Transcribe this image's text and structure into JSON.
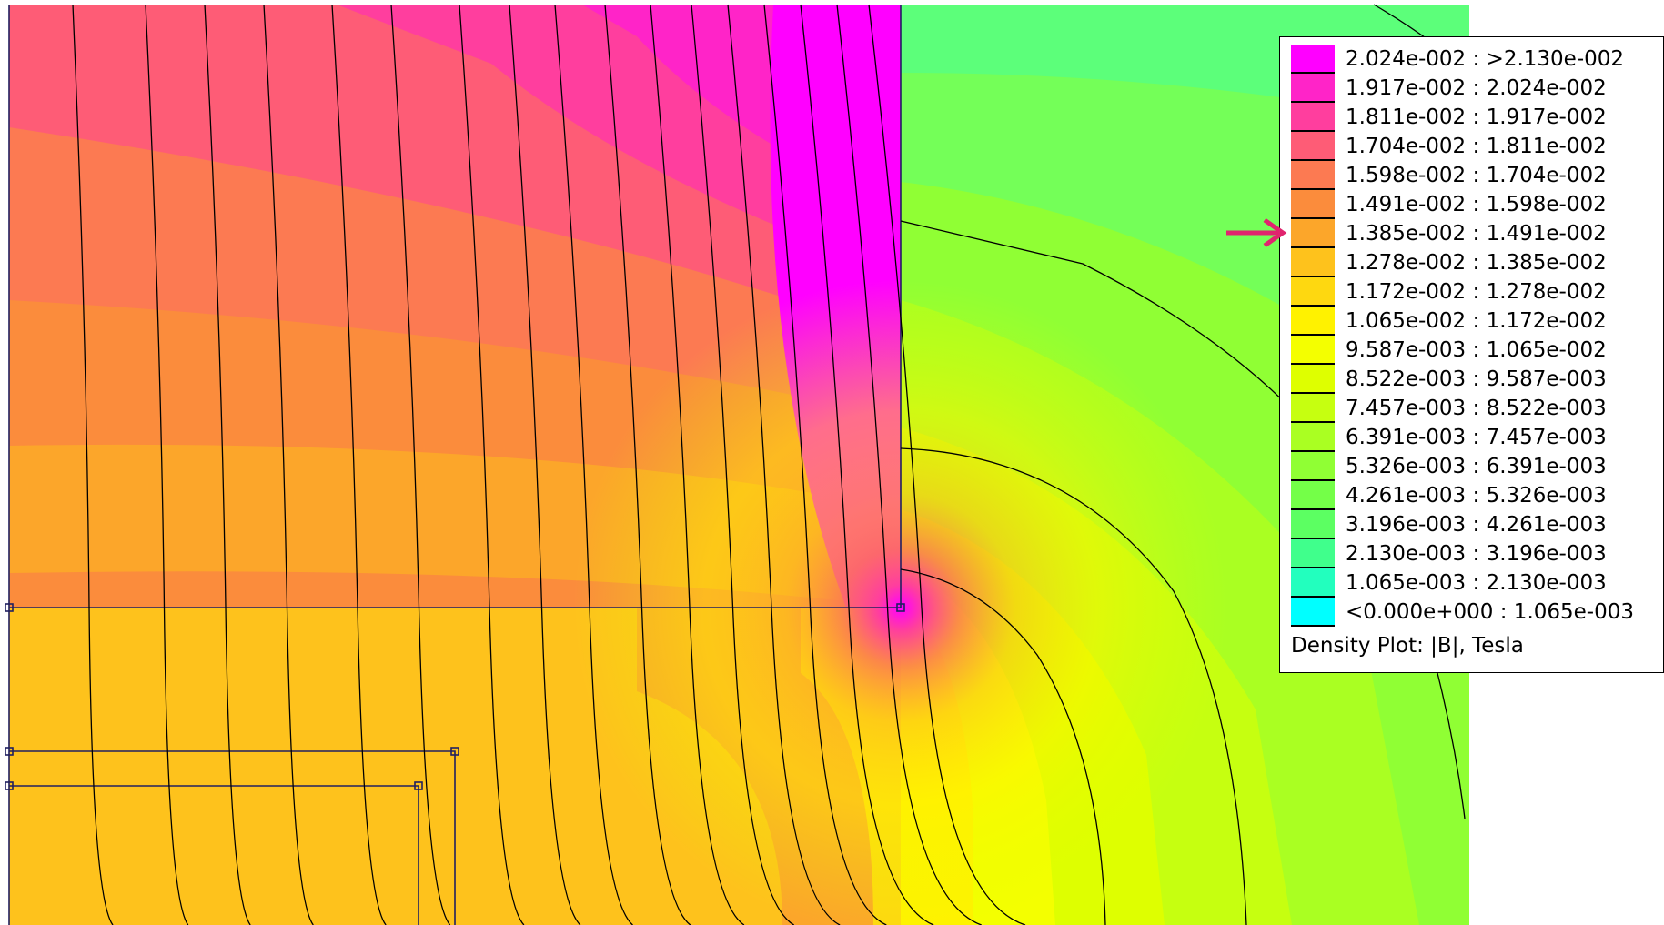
{
  "chart_data": {
    "type": "heatmap",
    "title": "",
    "legend": {
      "placement": "top-right",
      "caption": "Density Plot: |B|, Tesla",
      "ranges": [
        {
          "label": "2.024e-002 : >2.130e-002",
          "color": "#ff00ff"
        },
        {
          "label": "1.917e-002 : 2.024e-002",
          "color": "#ff24c8"
        },
        {
          "label": "1.811e-002 : 1.917e-002",
          "color": "#ff3e9e"
        },
        {
          "label": "1.704e-002 : 1.811e-002",
          "color": "#fe5c76"
        },
        {
          "label": "1.598e-002 : 1.704e-002",
          "color": "#fc7a52"
        },
        {
          "label": "1.491e-002 : 1.598e-002",
          "color": "#fb8c3c"
        },
        {
          "label": "1.385e-002 : 1.491e-002",
          "color": "#fca62a"
        },
        {
          "label": "1.278e-002 : 1.385e-002",
          "color": "#fec21c"
        },
        {
          "label": "1.172e-002 : 1.278e-002",
          "color": "#fed810"
        },
        {
          "label": "1.065e-002 : 1.172e-002",
          "color": "#fff200"
        },
        {
          "label": "9.587e-003 : 1.065e-002",
          "color": "#f4ff00"
        },
        {
          "label": "8.522e-003 : 9.587e-003",
          "color": "#deff00"
        },
        {
          "label": "7.457e-003 : 8.522e-003",
          "color": "#c6ff10"
        },
        {
          "label": "6.391e-003 : 7.457e-003",
          "color": "#aaff22"
        },
        {
          "label": "5.326e-003 : 6.391e-003",
          "color": "#90ff34"
        },
        {
          "label": "4.261e-003 : 5.326e-003",
          "color": "#74ff48"
        },
        {
          "label": "3.196e-003 : 4.261e-003",
          "color": "#5cff62"
        },
        {
          "label": "2.130e-003 : 3.196e-003",
          "color": "#40ff8c"
        },
        {
          "label": "1.065e-003 : 2.130e-003",
          "color": "#22ffbe"
        },
        {
          "label": "<0.000e+000 : 1.065e-003",
          "color": "#00ffff"
        }
      ]
    },
    "highlighted_range": "1.385e-002 : 1.491e-002",
    "contour_lines": "flux lines",
    "grid": false
  },
  "colors": {
    "arrow": "#e0246e",
    "geometry_outline": "#202060",
    "flux_line": "#000000"
  }
}
